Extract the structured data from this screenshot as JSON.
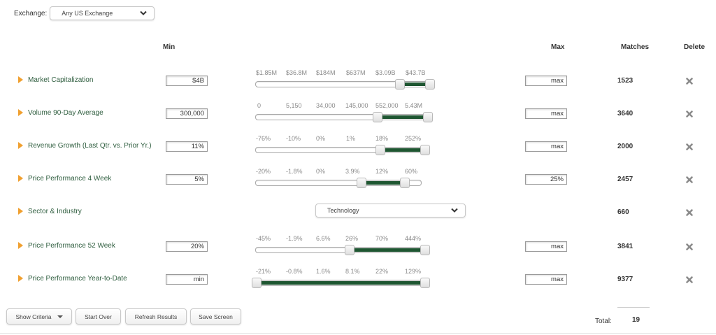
{
  "exchange": {
    "label": "Exchange:",
    "value": "Any US Exchange"
  },
  "headers": {
    "min": "Min",
    "max": "Max",
    "matches": "Matches",
    "delete": "Delete"
  },
  "criteria": [
    {
      "name": "Market Capitalization",
      "min": "$4B",
      "max": "max",
      "matches": "1523",
      "ticks": [
        "$1.85M",
        "$36.8M",
        "$184M",
        "$637M",
        "$3.09B",
        "$43.7B"
      ]
    },
    {
      "name": "Volume 90-Day Average",
      "min": "300,000",
      "max": "max",
      "matches": "3640",
      "ticks": [
        "0",
        "5,150",
        "34,000",
        "145,000",
        "552,000",
        "5.43M"
      ]
    },
    {
      "name": "Revenue Growth (Last Qtr. vs. Prior Yr.)",
      "min": "11%",
      "max": "max",
      "matches": "2000",
      "ticks": [
        "-76%",
        "-10%",
        "0%",
        "1%",
        "18%",
        "252%"
      ]
    },
    {
      "name": "Price Performance 4 Week",
      "min": "5%",
      "max": "25%",
      "matches": "2457",
      "ticks": [
        "-20%",
        "-1.8%",
        "0%",
        "3.9%",
        "12%",
        "60%"
      ]
    },
    {
      "name": "Sector & Industry",
      "select": "Technology",
      "matches": "660"
    },
    {
      "name": "Price Performance 52 Week",
      "min": "20%",
      "max": "max",
      "matches": "3841",
      "ticks": [
        "-45%",
        "-1.9%",
        "6.6%",
        "26%",
        "70%",
        "444%"
      ]
    },
    {
      "name": "Price Performance Year-to-Date",
      "min": "min",
      "max": "max",
      "matches": "9377",
      "ticks": [
        "-21%",
        "-0.8%",
        "1.6%",
        "8.1%",
        "22%",
        "129%"
      ]
    }
  ],
  "buttons": {
    "show_criteria": "Show Criteria",
    "start_over": "Start Over",
    "refresh": "Refresh Results",
    "save": "Save Screen"
  },
  "total": {
    "label": "Total:",
    "value": "19"
  },
  "colors": {
    "fill": "#1e5631",
    "arrow": "#f0a030",
    "name": "#2e5d3e"
  }
}
